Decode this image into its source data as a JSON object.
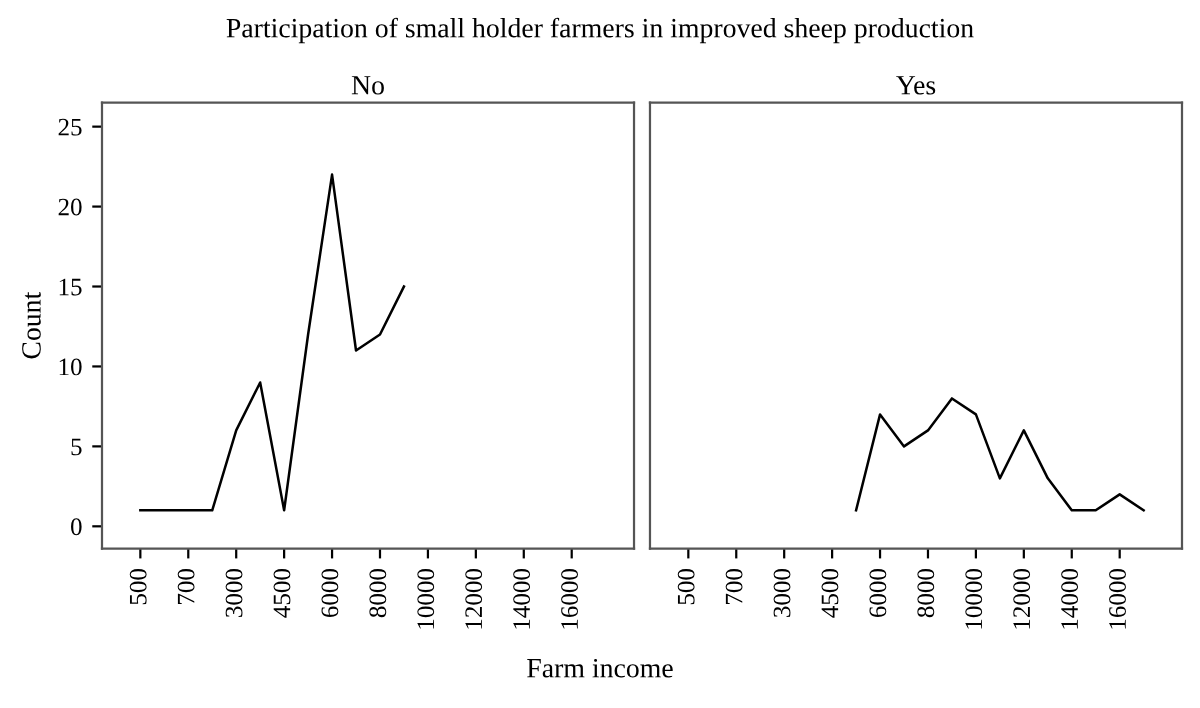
{
  "chart_data": [
    {
      "type": "line",
      "title": "Participation of small holder farmers in improved sheep production",
      "subtitle": "No",
      "xlabel": "Farm income",
      "ylabel": "Count",
      "categories": [
        "500",
        null,
        "700",
        null,
        "3000",
        null,
        "4500",
        null,
        "6000",
        null,
        "8000",
        null,
        "10000",
        null,
        "12000",
        null,
        "14000",
        null,
        "16000",
        null
      ],
      "series": [
        {
          "color": "#000000",
          "values": [
            1,
            1,
            1,
            1,
            6,
            9,
            1,
            12,
            22,
            11,
            12,
            15,
            null,
            null,
            null,
            null,
            null,
            null,
            null,
            null
          ]
        }
      ],
      "ylim": [
        -1.4,
        26.5
      ],
      "yticks": [
        0,
        5,
        10,
        15,
        20,
        25
      ],
      "grid": false,
      "legend": false,
      "marker": "none",
      "line_style": "solid"
    },
    {
      "type": "line",
      "subtitle": "Yes",
      "categories": [
        "500",
        null,
        "700",
        null,
        "3000",
        null,
        "4500",
        null,
        "6000",
        null,
        "8000",
        null,
        "10000",
        null,
        "12000",
        null,
        "14000",
        null,
        "16000",
        null
      ],
      "series": [
        {
          "color": "#000000",
          "values": [
            null,
            null,
            null,
            null,
            null,
            null,
            null,
            1,
            7,
            5,
            6,
            8,
            7,
            3,
            6,
            3,
            1,
            1,
            2,
            1
          ]
        }
      ],
      "ylim": [
        -1.4,
        26.5
      ],
      "yticks": [
        0,
        5,
        10,
        15,
        20,
        25
      ],
      "tick_labels": "x",
      "grid": false,
      "legend": false,
      "marker": "none",
      "line_style": "solid"
    }
  ]
}
